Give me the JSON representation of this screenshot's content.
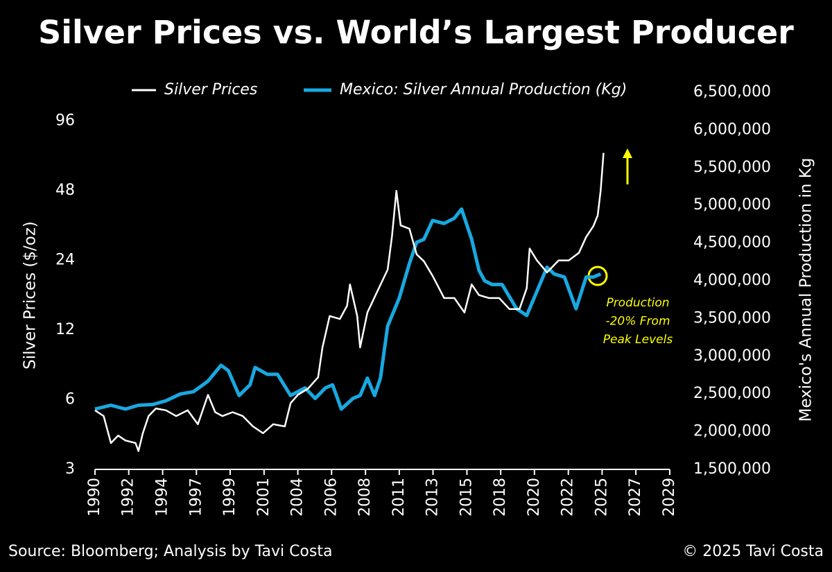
{
  "chart_data": {
    "type": "line",
    "title": "Silver Prices vs. World’s Largest Producer",
    "ylabel": "Silver Prices ($/oz)",
    "y2label": "Mexico's Annual Production in Kg",
    "source": "Source: Bloomberg; Analysis by Tavi Costa",
    "credit": "© 2025 Tavi Costa",
    "annotation": [
      "Production",
      "-20% From",
      "Peak Levels"
    ],
    "annotation_color": "#ffff00",
    "yscale": "log",
    "grid": false,
    "legend": "top",
    "xlim": [
      1990,
      2029.67
    ],
    "xticks": [
      {
        "value": 1990,
        "label": "1990"
      },
      {
        "value": 1992.33,
        "label": "1992"
      },
      {
        "value": 1994.67,
        "label": "1994"
      },
      {
        "value": 1997,
        "label": "1997"
      },
      {
        "value": 1999.33,
        "label": "1999"
      },
      {
        "value": 2001.67,
        "label": "2001"
      },
      {
        "value": 2004,
        "label": "2004"
      },
      {
        "value": 2006.33,
        "label": "2006"
      },
      {
        "value": 2008.67,
        "label": "2008"
      },
      {
        "value": 2011,
        "label": "2011"
      },
      {
        "value": 2013.33,
        "label": "2013"
      },
      {
        "value": 2015.67,
        "label": "2015"
      },
      {
        "value": 2018,
        "label": "2018"
      },
      {
        "value": 2020.33,
        "label": "2020"
      },
      {
        "value": 2022.67,
        "label": "2022"
      },
      {
        "value": 2025,
        "label": "2025"
      },
      {
        "value": 2027.33,
        "label": "2027"
      },
      {
        "value": 2029.67,
        "label": "2029"
      }
    ],
    "ylim": [
      3,
      128
    ],
    "yticks": [
      3,
      6,
      12,
      24,
      48,
      96
    ],
    "y2lim": [
      1500000,
      6500000
    ],
    "y2ticks": [
      {
        "value": 1500000,
        "label": "1,500,000"
      },
      {
        "value": 2000000,
        "label": "2,000,000"
      },
      {
        "value": 2500000,
        "label": "2,500,000"
      },
      {
        "value": 3000000,
        "label": "3,000,000"
      },
      {
        "value": 3500000,
        "label": "3,500,000"
      },
      {
        "value": 4000000,
        "label": "4,000,000"
      },
      {
        "value": 4500000,
        "label": "4,500,000"
      },
      {
        "value": 5000000,
        "label": "5,000,000"
      },
      {
        "value": 5500000,
        "label": "5,500,000"
      },
      {
        "value": 6000000,
        "label": "6,000,000"
      },
      {
        "value": 6500000,
        "label": "6,500,000"
      }
    ],
    "series": [
      {
        "name": "Silver Prices",
        "color": "#ffffff",
        "axis": "y",
        "x": [
          1990.0,
          1990.6,
          1991.1,
          1991.6,
          1992.1,
          1992.8,
          1993.0,
          1993.3,
          1993.7,
          1994.2,
          1994.9,
          1995.6,
          1996.4,
          1997.1,
          1997.8,
          1998.3,
          1998.8,
          1999.5,
          2000.2,
          2000.9,
          2001.6,
          2002.3,
          2003.1,
          2003.5,
          2004.0,
          2004.7,
          2005.4,
          2005.7,
          2006.2,
          2006.9,
          2007.4,
          2007.6,
          2008.1,
          2008.3,
          2008.8,
          2009.5,
          2010.2,
          2010.5,
          2010.8,
          2011.1,
          2011.7,
          2012.2,
          2012.7,
          2013.3,
          2014.1,
          2014.8,
          2015.5,
          2016.0,
          2016.5,
          2017.2,
          2017.9,
          2018.6,
          2019.3,
          2019.8,
          2020.0,
          2020.5,
          2021.2,
          2022.0,
          2022.7,
          2023.4,
          2023.9,
          2024.4,
          2024.7,
          2024.9,
          2025.1
        ],
        "values": [
          5.4,
          5.1,
          3.9,
          4.2,
          4.0,
          3.9,
          3.6,
          4.3,
          5.1,
          5.5,
          5.4,
          5.1,
          5.4,
          4.7,
          6.3,
          5.3,
          5.1,
          5.3,
          5.1,
          4.6,
          4.3,
          4.7,
          4.6,
          5.8,
          6.3,
          6.7,
          7.5,
          10.1,
          13.8,
          13.4,
          15.3,
          18.9,
          13.8,
          10.1,
          14.3,
          17.7,
          21.9,
          30.6,
          48.0,
          34.0,
          32.9,
          25.5,
          23.8,
          20.6,
          16.5,
          16.5,
          14.3,
          18.9,
          17.0,
          16.5,
          16.5,
          14.8,
          14.8,
          18.2,
          27.0,
          24.0,
          21.3,
          24.0,
          24.0,
          25.9,
          30.3,
          33.8,
          37.6,
          48.0,
          70.0
        ]
      },
      {
        "name": "Mexico: Silver Annual Production (Kg)",
        "color": "#18a8e0",
        "axis": "y2",
        "x": [
          1990.0,
          1991.1,
          1992.1,
          1993.0,
          1994.0,
          1994.9,
          1995.9,
          1996.8,
          1997.8,
          1998.7,
          1999.2,
          1999.95,
          2000.7,
          2001.05,
          2001.9,
          2002.6,
          2003.5,
          2004.5,
          2005.2,
          2005.9,
          2006.4,
          2007.0,
          2007.8,
          2008.3,
          2008.8,
          2009.3,
          2009.7,
          2010.2,
          2011.0,
          2011.7,
          2012.2,
          2012.7,
          2013.3,
          2014.1,
          2014.8,
          2015.3,
          2016.0,
          2016.5,
          2016.9,
          2017.4,
          2018.1,
          2019.1,
          2019.8,
          2020.5,
          2021.2,
          2021.7,
          2022.4,
          2023.2,
          2023.9,
          2024.4,
          2024.9
        ],
        "values": [
          2300000,
          2350000,
          2300000,
          2350000,
          2360000,
          2410000,
          2500000,
          2530000,
          2670000,
          2880000,
          2810000,
          2480000,
          2620000,
          2850000,
          2760000,
          2760000,
          2480000,
          2580000,
          2440000,
          2580000,
          2620000,
          2300000,
          2440000,
          2480000,
          2710000,
          2480000,
          2710000,
          3400000,
          3770000,
          4230000,
          4510000,
          4550000,
          4800000,
          4760000,
          4830000,
          4950000,
          4550000,
          4140000,
          4000000,
          3950000,
          3950000,
          3630000,
          3540000,
          3860000,
          4180000,
          4090000,
          4050000,
          3630000,
          4050000,
          4050000,
          4090000
        ]
      }
    ]
  }
}
